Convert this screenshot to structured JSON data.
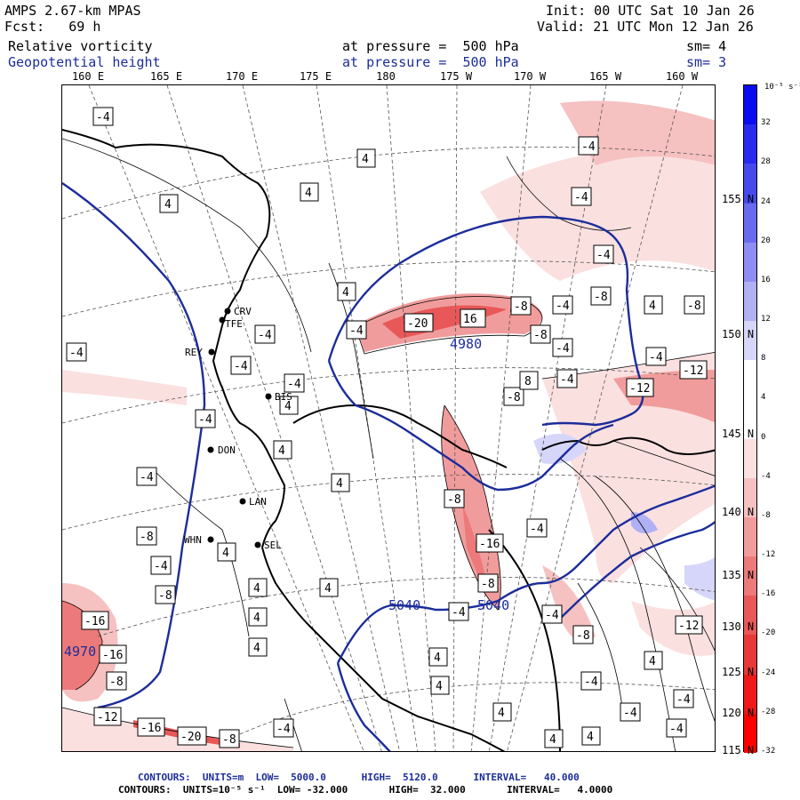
{
  "header": {
    "model": "AMPS 2.67-km MPAS",
    "forecast": "Fcst:   69 h",
    "field1": "Relative vorticity",
    "field2": "Geopotential height",
    "pressure1": "at pressure =  500 hPa",
    "pressure2": "at pressure =  500 hPa",
    "init": "Init: 00 UTC Sat 10 Jan 26",
    "valid": "Valid: 21 UTC Mon 12 Jan 26",
    "sm1": "sm= 4",
    "sm2": "sm= 3"
  },
  "longitudes": [
    "160 E",
    "165 E",
    "170 E",
    "175 E",
    "180",
    "175 W",
    "170 W",
    "165 W",
    "160 W"
  ],
  "latitudes": [
    "155 N",
    "150 N",
    "145 N",
    "140 N",
    "135 N",
    "130 N",
    "125 N",
    "120 N",
    "115 N"
  ],
  "colorbar": {
    "units": "10⁻⁵ s⁻¹",
    "levels": [
      "32",
      "28",
      "24",
      "20",
      "16",
      "12",
      "8",
      "4",
      "0",
      "-4",
      "-8",
      "-12",
      "-16",
      "-20",
      "-24",
      "-28",
      "-32"
    ],
    "colors": [
      "#0b0bf0",
      "#2a2aee",
      "#4848ec",
      "#6a6aee",
      "#8d8df2",
      "#b0b0f5",
      "#d6d6fa",
      "#ffffff",
      "#ffffff",
      "#fbe0e0",
      "#f6c1c1",
      "#f19c9c",
      "#ec7a7a",
      "#e85858",
      "#e83838",
      "#f01818",
      "#ff0000"
    ]
  },
  "stations": [
    "CRV",
    "TFE",
    "REY",
    "BIS",
    "DON",
    "LAN",
    "SEL",
    "WHN"
  ],
  "height_labels": [
    "4980",
    "5040",
    "5040",
    "4970"
  ],
  "vort_labels": [
    "-4",
    "4",
    "-8",
    "-12",
    "-16",
    "-20",
    "16",
    "8"
  ],
  "footer": {
    "line1": "CONTOURS:  UNITS=m  LOW=  5000.0      HIGH=  5120.0      INTERVAL=   40.000",
    "line2": "CONTOURS:  UNITS=10⁻⁵ s⁻¹  LOW= -32.000       HIGH=  32.000       INTERVAL=   4.0000"
  }
}
